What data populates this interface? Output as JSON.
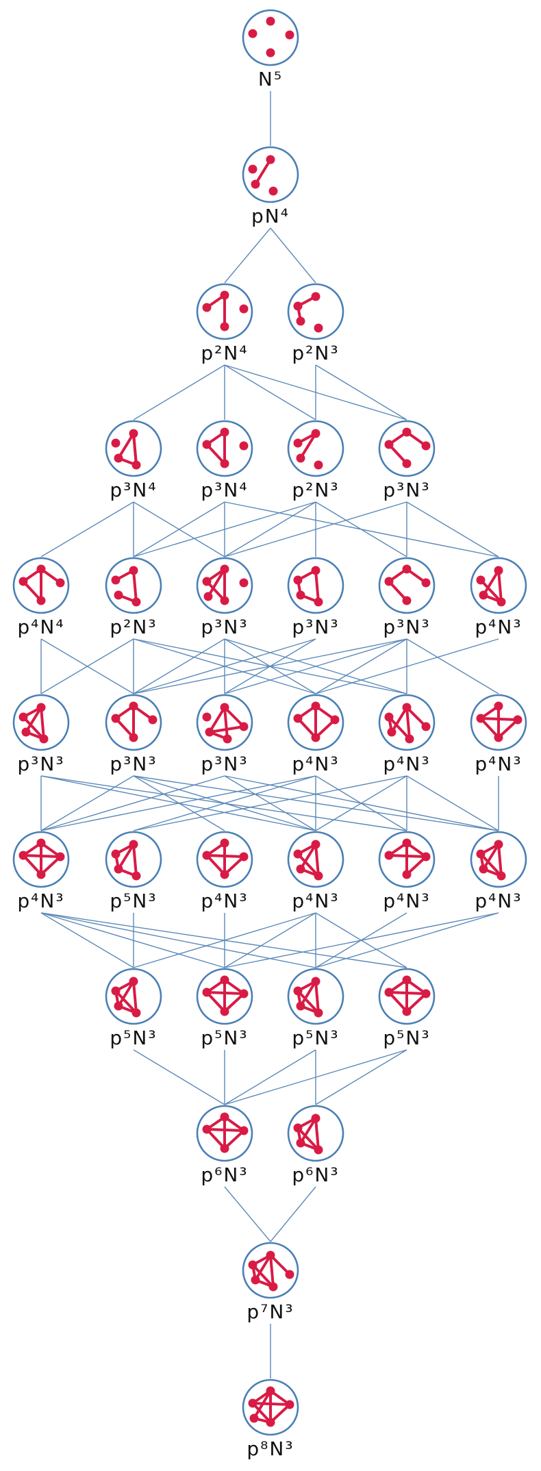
{
  "levels": [
    [
      {
        "label": "N⁵",
        "edges": []
      }
    ],
    [
      {
        "label": "pN⁴",
        "edges": [
          [
            0,
            2
          ]
        ]
      }
    ],
    [
      {
        "label": "p²N⁴",
        "edges": [
          [
            0,
            2
          ],
          [
            3,
            0
          ]
        ]
      },
      {
        "label": "p²N³",
        "edges": [
          [
            0,
            1
          ],
          [
            1,
            2
          ]
        ]
      }
    ],
    [
      {
        "label": "p³N⁴",
        "edges": [
          [
            0,
            2
          ],
          [
            0,
            3
          ],
          [
            3,
            0
          ],
          [
            3,
            2
          ]
        ]
      },
      {
        "label": "p³N⁴",
        "edges": [
          [
            0,
            2
          ],
          [
            0,
            3
          ],
          [
            3,
            2
          ]
        ]
      },
      {
        "label": "p²N³",
        "edges": [
          [
            0,
            1
          ],
          [
            0,
            2
          ]
        ]
      },
      {
        "label": "p³N³",
        "edges": [
          [
            0,
            3
          ],
          [
            3,
            2
          ],
          [
            0,
            1
          ]
        ]
      }
    ],
    [
      {
        "label": "p⁴N⁴",
        "edges": [
          [
            0,
            1
          ],
          [
            0,
            2
          ],
          [
            0,
            3
          ],
          [
            3,
            2
          ]
        ]
      },
      {
        "label": "p²N³",
        "edges": [
          [
            0,
            1
          ],
          [
            0,
            3
          ],
          [
            3,
            2
          ]
        ]
      },
      {
        "label": "p³N³",
        "edges": [
          [
            0,
            2
          ],
          [
            0,
            3
          ],
          [
            3,
            2
          ],
          [
            0,
            4
          ]
        ]
      },
      {
        "label": "p³N³",
        "edges": [
          [
            0,
            1
          ],
          [
            1,
            2
          ],
          [
            2,
            3
          ],
          [
            3,
            0
          ]
        ]
      },
      {
        "label": "p³N³",
        "edges": [
          [
            0,
            1
          ],
          [
            0,
            3
          ],
          [
            3,
            2
          ]
        ]
      },
      {
        "label": "p⁴N³",
        "edges": [
          [
            0,
            3
          ],
          [
            0,
            2
          ],
          [
            3,
            1
          ],
          [
            3,
            2
          ]
        ]
      }
    ],
    [
      {
        "label": "p³N³",
        "edges": [
          [
            0,
            1
          ],
          [
            0,
            2
          ],
          [
            0,
            3
          ],
          [
            3,
            2
          ],
          [
            3,
            1
          ]
        ]
      },
      {
        "label": "p³N³",
        "edges": [
          [
            0,
            1
          ],
          [
            0,
            2
          ],
          [
            0,
            3
          ],
          [
            3,
            2
          ]
        ]
      },
      {
        "label": "p³N³",
        "edges": [
          [
            0,
            2
          ],
          [
            0,
            3
          ],
          [
            3,
            2
          ],
          [
            0,
            4
          ],
          [
            4,
            2
          ]
        ]
      },
      {
        "label": "p⁴N³",
        "edges": [
          [
            0,
            1
          ],
          [
            0,
            3
          ],
          [
            1,
            2
          ],
          [
            3,
            2
          ],
          [
            0,
            2
          ]
        ]
      },
      {
        "label": "p⁴N³",
        "edges": [
          [
            0,
            2
          ],
          [
            0,
            3
          ],
          [
            3,
            1
          ],
          [
            1,
            2
          ],
          [
            0,
            4
          ]
        ]
      },
      {
        "label": "p⁴N³",
        "edges": [
          [
            0,
            3
          ],
          [
            0,
            2
          ],
          [
            3,
            1
          ],
          [
            3,
            2
          ],
          [
            1,
            2
          ]
        ]
      }
    ],
    [
      {
        "label": "p⁴N³",
        "edges": [
          [
            0,
            1
          ],
          [
            0,
            2
          ],
          [
            0,
            3
          ],
          [
            3,
            2
          ],
          [
            1,
            2
          ],
          [
            3,
            1
          ]
        ]
      },
      {
        "label": "p⁵N³",
        "edges": [
          [
            0,
            1
          ],
          [
            1,
            2
          ],
          [
            2,
            3
          ],
          [
            3,
            0
          ],
          [
            0,
            2
          ]
        ]
      },
      {
        "label": "p⁴N³",
        "edges": [
          [
            0,
            2
          ],
          [
            0,
            3
          ],
          [
            3,
            2
          ],
          [
            3,
            1
          ],
          [
            1,
            2
          ]
        ]
      },
      {
        "label": "p⁴N³",
        "edges": [
          [
            0,
            1
          ],
          [
            0,
            2
          ],
          [
            0,
            3
          ],
          [
            3,
            2
          ],
          [
            1,
            3
          ]
        ]
      },
      {
        "label": "p⁴N³",
        "edges": [
          [
            0,
            2
          ],
          [
            0,
            3
          ],
          [
            3,
            1
          ],
          [
            1,
            2
          ],
          [
            0,
            1
          ]
        ]
      },
      {
        "label": "p⁴N³",
        "edges": [
          [
            0,
            3
          ],
          [
            0,
            2
          ],
          [
            3,
            1
          ],
          [
            3,
            2
          ],
          [
            1,
            2
          ],
          [
            0,
            1
          ]
        ]
      }
    ],
    [
      {
        "label": "p⁵N³",
        "edges": [
          [
            0,
            1
          ],
          [
            0,
            2
          ],
          [
            0,
            3
          ],
          [
            3,
            2
          ],
          [
            1,
            2
          ],
          [
            3,
            1
          ]
        ]
      },
      {
        "label": "p⁵N³",
        "edges": [
          [
            0,
            1
          ],
          [
            0,
            2
          ],
          [
            0,
            3
          ],
          [
            3,
            2
          ],
          [
            1,
            2
          ],
          [
            3,
            1
          ]
        ]
      },
      {
        "label": "p⁵N³",
        "edges": [
          [
            0,
            1
          ],
          [
            0,
            2
          ],
          [
            0,
            3
          ],
          [
            3,
            2
          ],
          [
            1,
            2
          ],
          [
            3,
            1
          ]
        ]
      },
      {
        "label": "p⁵N³",
        "edges": [
          [
            0,
            1
          ],
          [
            0,
            2
          ],
          [
            0,
            3
          ],
          [
            3,
            2
          ],
          [
            1,
            2
          ],
          [
            3,
            1
          ]
        ]
      }
    ],
    [
      {
        "label": "p⁶N³",
        "edges": [
          [
            0,
            1
          ],
          [
            0,
            2
          ],
          [
            0,
            3
          ],
          [
            3,
            2
          ],
          [
            1,
            2
          ],
          [
            3,
            1
          ]
        ]
      },
      {
        "label": "p⁶N³",
        "edges": [
          [
            0,
            1
          ],
          [
            0,
            2
          ],
          [
            0,
            3
          ],
          [
            3,
            2
          ],
          [
            1,
            2
          ],
          [
            3,
            1
          ]
        ]
      }
    ],
    [
      {
        "label": "p⁷N³",
        "edges": [
          [
            0,
            1
          ],
          [
            0,
            2
          ],
          [
            0,
            3
          ],
          [
            3,
            2
          ],
          [
            1,
            2
          ],
          [
            3,
            1
          ],
          [
            0,
            4
          ]
        ]
      }
    ],
    [
      {
        "label": "p⁸N³",
        "edges": [
          [
            0,
            1
          ],
          [
            0,
            2
          ],
          [
            0,
            3
          ],
          [
            3,
            2
          ],
          [
            1,
            2
          ],
          [
            3,
            1
          ],
          [
            0,
            4
          ],
          [
            4,
            2
          ]
        ]
      }
    ]
  ],
  "links": [
    [
      [
        0,
        0
      ],
      [
        1,
        0
      ]
    ],
    [
      [
        1,
        0
      ],
      [
        2,
        0
      ]
    ],
    [
      [
        1,
        0
      ],
      [
        2,
        1
      ]
    ],
    [
      [
        2,
        0
      ],
      [
        3,
        0
      ]
    ],
    [
      [
        2,
        0
      ],
      [
        3,
        1
      ]
    ],
    [
      [
        2,
        0
      ],
      [
        3,
        2
      ]
    ],
    [
      [
        2,
        0
      ],
      [
        3,
        3
      ]
    ],
    [
      [
        2,
        1
      ],
      [
        3,
        2
      ]
    ],
    [
      [
        2,
        1
      ],
      [
        3,
        3
      ]
    ],
    [
      [
        3,
        0
      ],
      [
        4,
        0
      ]
    ],
    [
      [
        3,
        0
      ],
      [
        4,
        1
      ]
    ],
    [
      [
        3,
        0
      ],
      [
        4,
        2
      ]
    ],
    [
      [
        3,
        1
      ],
      [
        4,
        1
      ]
    ],
    [
      [
        3,
        1
      ],
      [
        4,
        2
      ]
    ],
    [
      [
        3,
        1
      ],
      [
        4,
        5
      ]
    ],
    [
      [
        3,
        2
      ],
      [
        4,
        1
      ]
    ],
    [
      [
        3,
        2
      ],
      [
        4,
        2
      ]
    ],
    [
      [
        3,
        2
      ],
      [
        4,
        3
      ]
    ],
    [
      [
        3,
        2
      ],
      [
        4,
        4
      ]
    ],
    [
      [
        3,
        3
      ],
      [
        4,
        2
      ]
    ],
    [
      [
        3,
        3
      ],
      [
        4,
        4
      ]
    ],
    [
      [
        3,
        3
      ],
      [
        4,
        5
      ]
    ],
    [
      [
        4,
        0
      ],
      [
        5,
        0
      ]
    ],
    [
      [
        4,
        0
      ],
      [
        5,
        1
      ]
    ],
    [
      [
        4,
        1
      ],
      [
        5,
        0
      ]
    ],
    [
      [
        4,
        1
      ],
      [
        5,
        1
      ]
    ],
    [
      [
        4,
        1
      ],
      [
        5,
        3
      ]
    ],
    [
      [
        4,
        1
      ],
      [
        5,
        4
      ]
    ],
    [
      [
        4,
        2
      ],
      [
        5,
        1
      ]
    ],
    [
      [
        4,
        2
      ],
      [
        5,
        2
      ]
    ],
    [
      [
        4,
        2
      ],
      [
        5,
        3
      ]
    ],
    [
      [
        4,
        2
      ],
      [
        5,
        4
      ]
    ],
    [
      [
        4,
        3
      ],
      [
        5,
        1
      ]
    ],
    [
      [
        4,
        3
      ],
      [
        5,
        2
      ]
    ],
    [
      [
        4,
        4
      ],
      [
        5,
        1
      ]
    ],
    [
      [
        4,
        4
      ],
      [
        5,
        2
      ]
    ],
    [
      [
        4,
        4
      ],
      [
        5,
        3
      ]
    ],
    [
      [
        4,
        4
      ],
      [
        5,
        4
      ]
    ],
    [
      [
        4,
        4
      ],
      [
        5,
        5
      ]
    ],
    [
      [
        4,
        5
      ],
      [
        5,
        3
      ]
    ],
    [
      [
        5,
        0
      ],
      [
        6,
        0
      ]
    ],
    [
      [
        5,
        0
      ],
      [
        6,
        3
      ]
    ],
    [
      [
        5,
        0
      ],
      [
        6,
        4
      ]
    ],
    [
      [
        5,
        1
      ],
      [
        6,
        0
      ]
    ],
    [
      [
        5,
        1
      ],
      [
        6,
        2
      ]
    ],
    [
      [
        5,
        1
      ],
      [
        6,
        3
      ]
    ],
    [
      [
        5,
        1
      ],
      [
        6,
        5
      ]
    ],
    [
      [
        5,
        2
      ],
      [
        6,
        0
      ]
    ],
    [
      [
        5,
        2
      ],
      [
        6,
        3
      ]
    ],
    [
      [
        5,
        2
      ],
      [
        6,
        5
      ]
    ],
    [
      [
        5,
        3
      ],
      [
        6,
        0
      ]
    ],
    [
      [
        5,
        3
      ],
      [
        6,
        1
      ]
    ],
    [
      [
        5,
        3
      ],
      [
        6,
        3
      ]
    ],
    [
      [
        5,
        3
      ],
      [
        6,
        4
      ]
    ],
    [
      [
        5,
        4
      ],
      [
        6,
        1
      ]
    ],
    [
      [
        5,
        4
      ],
      [
        6,
        3
      ]
    ],
    [
      [
        5,
        4
      ],
      [
        6,
        4
      ]
    ],
    [
      [
        5,
        4
      ],
      [
        6,
        5
      ]
    ],
    [
      [
        5,
        5
      ],
      [
        6,
        5
      ]
    ],
    [
      [
        6,
        0
      ],
      [
        7,
        0
      ]
    ],
    [
      [
        6,
        0
      ],
      [
        7,
        1
      ]
    ],
    [
      [
        6,
        0
      ],
      [
        7,
        2
      ]
    ],
    [
      [
        6,
        0
      ],
      [
        7,
        3
      ]
    ],
    [
      [
        6,
        1
      ],
      [
        7,
        0
      ]
    ],
    [
      [
        6,
        2
      ],
      [
        7,
        1
      ]
    ],
    [
      [
        6,
        3
      ],
      [
        7,
        0
      ]
    ],
    [
      [
        6,
        3
      ],
      [
        7,
        1
      ]
    ],
    [
      [
        6,
        3
      ],
      [
        7,
        2
      ]
    ],
    [
      [
        6,
        3
      ],
      [
        7,
        3
      ]
    ],
    [
      [
        6,
        4
      ],
      [
        7,
        2
      ]
    ],
    [
      [
        6,
        5
      ],
      [
        7,
        1
      ]
    ],
    [
      [
        6,
        5
      ],
      [
        7,
        2
      ]
    ],
    [
      [
        7,
        0
      ],
      [
        8,
        0
      ]
    ],
    [
      [
        7,
        1
      ],
      [
        8,
        0
      ]
    ],
    [
      [
        7,
        2
      ],
      [
        8,
        0
      ]
    ],
    [
      [
        7,
        2
      ],
      [
        8,
        1
      ]
    ],
    [
      [
        7,
        3
      ],
      [
        8,
        0
      ]
    ],
    [
      [
        7,
        3
      ],
      [
        8,
        1
      ]
    ],
    [
      [
        8,
        0
      ],
      [
        9,
        0
      ]
    ],
    [
      [
        8,
        1
      ],
      [
        9,
        0
      ]
    ],
    [
      [
        9,
        0
      ],
      [
        10,
        0
      ]
    ]
  ]
}
